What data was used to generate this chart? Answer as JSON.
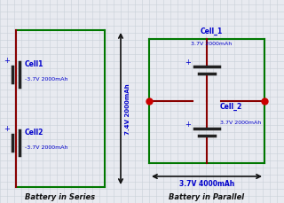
{
  "bg_color": "#e8eaf0",
  "grid_color": "#c8d0d8",
  "wire_green": "#007700",
  "wire_red": "#880000",
  "bat_color": "#222222",
  "text_color": "#0000cc",
  "arrow_color": "#111111",
  "dot_color": "#cc0000",
  "title_color": "#111111",
  "title1": "Battery in Series",
  "title2": "Battery in Parallel",
  "dim_text1": "7.4V 2000mAh",
  "dim_text2": "3.7V 4000mAh",
  "cell1_label": "Cell1",
  "cell1_val": "-3.7V 2000mAh",
  "cell2_label": "Cell2",
  "cell2_val": "-3.7V 2000mAh",
  "cellp1_label": "Cell_1",
  "cellp1_val": "3.7V 2000mAh",
  "cellp2_label": "Cell_2",
  "cellp2_val": "3.7V 2000mAh"
}
